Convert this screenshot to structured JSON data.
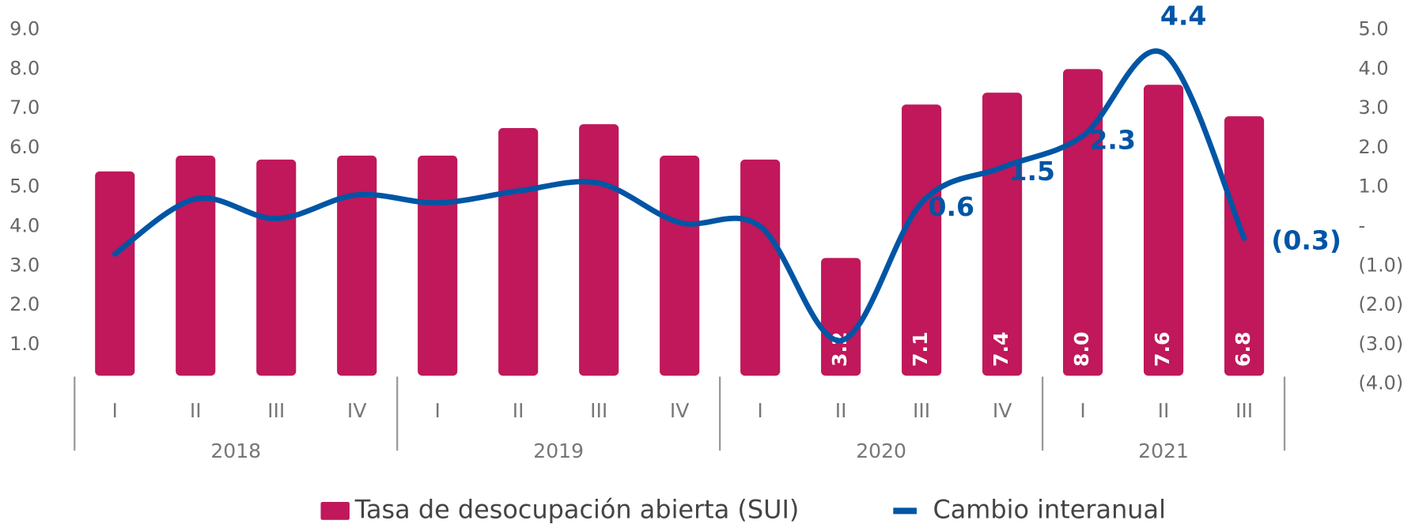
{
  "chart_data": {
    "type": "bar_line",
    "groups": [
      {
        "name": "2018",
        "categories": [
          "I",
          "II",
          "III",
          "IV"
        ]
      },
      {
        "name": "2019",
        "categories": [
          "I",
          "II",
          "III",
          "IV"
        ]
      },
      {
        "name": "2020",
        "categories": [
          "I",
          "II",
          "III",
          "IV"
        ]
      },
      {
        "name": "2021",
        "categories": [
          "I",
          "II",
          "III"
        ]
      }
    ],
    "series": [
      {
        "name": "Tasa de desocupación abierta (SUI)",
        "type": "bar",
        "color": "#c0185a",
        "values": [
          5.4,
          5.8,
          5.7,
          5.8,
          5.8,
          6.5,
          6.6,
          5.8,
          5.7,
          3.2,
          7.1,
          7.4,
          8.0,
          7.6,
          6.8
        ],
        "value_labels": [
          null,
          null,
          null,
          null,
          null,
          null,
          null,
          null,
          null,
          "3.2",
          "7.1",
          "7.4",
          "8.0",
          "7.6",
          "6.8"
        ]
      },
      {
        "name": "Cambio interanual",
        "type": "line",
        "color": "#0055a5",
        "axis": "y2",
        "values": [
          -0.7,
          0.7,
          0.2,
          0.8,
          0.6,
          0.9,
          1.1,
          0.1,
          0.0,
          -2.9,
          0.6,
          1.5,
          2.3,
          4.4,
          -0.3
        ],
        "value_labels": [
          null,
          null,
          null,
          null,
          null,
          null,
          null,
          null,
          null,
          null,
          "0.6",
          "1.5",
          "2.3",
          "4.4",
          "(0.3)"
        ]
      }
    ],
    "ylim": [
      0,
      9
    ],
    "yticks": [
      {
        "value": 1,
        "label": "1.0"
      },
      {
        "value": 2,
        "label": "2.0"
      },
      {
        "value": 3,
        "label": "3.0"
      },
      {
        "value": 4,
        "label": "4.0"
      },
      {
        "value": 5,
        "label": "5.0"
      },
      {
        "value": 6,
        "label": "6.0"
      },
      {
        "value": 7,
        "label": "7.0"
      },
      {
        "value": 8,
        "label": "8.0"
      },
      {
        "value": 9,
        "label": "9.0"
      }
    ],
    "y2lim": [
      -4,
      5
    ],
    "y2ticks": [
      {
        "value": 5,
        "label": "5.0"
      },
      {
        "value": 4,
        "label": "4.0"
      },
      {
        "value": 3,
        "label": "3.0"
      },
      {
        "value": 2,
        "label": "2.0"
      },
      {
        "value": 1,
        "label": "1.0"
      },
      {
        "value": 0,
        "label": "-"
      },
      {
        "value": -1,
        "label": "(1.0)"
      },
      {
        "value": -2,
        "label": "(2.0)"
      },
      {
        "value": -3,
        "label": "(3.0)"
      },
      {
        "value": -4,
        "label": "(4.0)"
      }
    ],
    "legend": "bottom"
  }
}
